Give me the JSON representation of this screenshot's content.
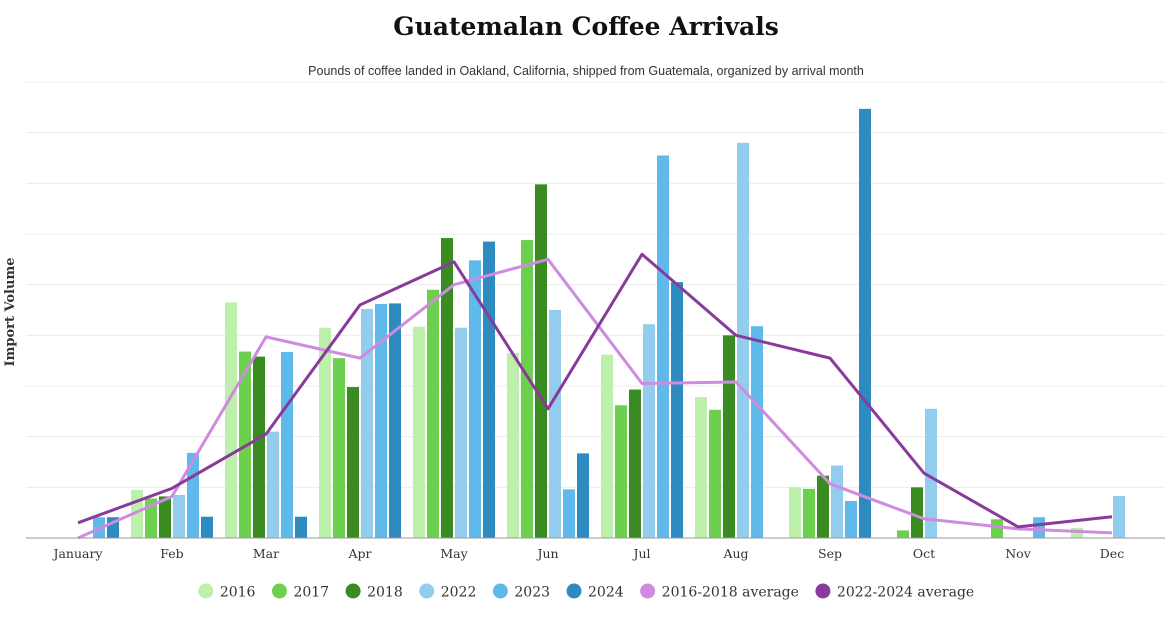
{
  "chart_data": {
    "type": "bar",
    "title": "Guatemalan Coffee Arrivals",
    "subtitle": "Pounds of coffee landed in Oakland, California, shipped from Guatemala, organized by arrival month",
    "ylabel": "Import Volume",
    "xlabel": "",
    "categories": [
      "January",
      "Feb",
      "Mar",
      "Apr",
      "May",
      "Jun",
      "Jul",
      "Aug",
      "Sep",
      "Oct",
      "Nov",
      "Dec"
    ],
    "ylim": [
      0,
      9
    ],
    "grid": true,
    "legend_position": "bottom",
    "series": [
      {
        "name": "2016",
        "type": "bar",
        "color": "#bdf0aa",
        "values": [
          0,
          0.95,
          4.65,
          4.15,
          4.17,
          3.65,
          3.62,
          2.78,
          1.0,
          0,
          0,
          0.2
        ]
      },
      {
        "name": "2017",
        "type": "bar",
        "color": "#6ccf4d",
        "values": [
          0,
          0.78,
          3.68,
          3.55,
          4.9,
          5.88,
          2.62,
          2.53,
          0.97,
          0.15,
          0.37,
          0
        ]
      },
      {
        "name": "2018",
        "type": "bar",
        "color": "#3a8c22",
        "values": [
          0,
          0.82,
          3.58,
          2.98,
          5.92,
          6.98,
          2.93,
          4.0,
          1.23,
          1.0,
          0,
          0
        ]
      },
      {
        "name": "2022",
        "type": "bar",
        "color": "#92cdee",
        "values": [
          0,
          0.85,
          2.1,
          4.52,
          4.15,
          4.5,
          4.22,
          7.8,
          1.43,
          2.55,
          0,
          0.83
        ]
      },
      {
        "name": "2023",
        "type": "bar",
        "color": "#5fb9ea",
        "values": [
          0.41,
          1.68,
          3.67,
          4.62,
          5.48,
          0.96,
          7.55,
          4.18,
          0.73,
          0,
          0.41,
          0
        ]
      },
      {
        "name": "2024",
        "type": "bar",
        "color": "#2e8bc0",
        "values": [
          0.41,
          0.42,
          0.42,
          4.63,
          5.85,
          1.67,
          5.05,
          0,
          8.47,
          0,
          0,
          0
        ]
      },
      {
        "name": "2016-2018 average",
        "type": "line",
        "color": "#cf8bdf",
        "values": [
          0,
          0.82,
          3.97,
          3.55,
          5.0,
          5.5,
          3.05,
          3.08,
          1.07,
          0.38,
          0.18,
          0.1
        ]
      },
      {
        "name": "2022-2024 average",
        "type": "line",
        "color": "#883b9b",
        "values": [
          0.3,
          0.98,
          2.05,
          4.6,
          5.45,
          2.55,
          5.6,
          4.0,
          3.55,
          1.28,
          0.22,
          0.42
        ]
      }
    ]
  }
}
